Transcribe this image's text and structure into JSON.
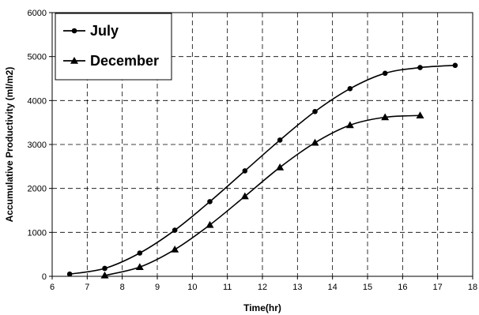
{
  "chart_data": {
    "type": "line",
    "xlabel": "Time(hr)",
    "ylabel": "Accumulative Productivity  (ml/m2)",
    "xlim": [
      6,
      18
    ],
    "ylim": [
      0,
      6000
    ],
    "x_ticks": [
      6,
      7,
      8,
      9,
      10,
      11,
      12,
      13,
      14,
      15,
      16,
      17,
      18
    ],
    "y_ticks": [
      0,
      1000,
      2000,
      3000,
      4000,
      5000,
      6000
    ],
    "grid": true,
    "legend_position": "top-left",
    "series": [
      {
        "name": "July",
        "marker": "circle",
        "x": [
          6.5,
          7.5,
          8.5,
          9.5,
          10.5,
          11.5,
          12.5,
          13.5,
          14.5,
          15.5,
          16.5,
          17.5
        ],
        "y": [
          50,
          180,
          530,
          1050,
          1700,
          2400,
          3100,
          3750,
          4270,
          4620,
          4750,
          4800
        ]
      },
      {
        "name": "December",
        "marker": "triangle",
        "x": [
          7.5,
          8.5,
          9.5,
          10.5,
          11.5,
          12.5,
          13.5,
          14.5,
          15.5,
          16.5
        ],
        "y": [
          20,
          210,
          610,
          1170,
          1820,
          2480,
          3040,
          3440,
          3620,
          3660
        ]
      }
    ]
  }
}
